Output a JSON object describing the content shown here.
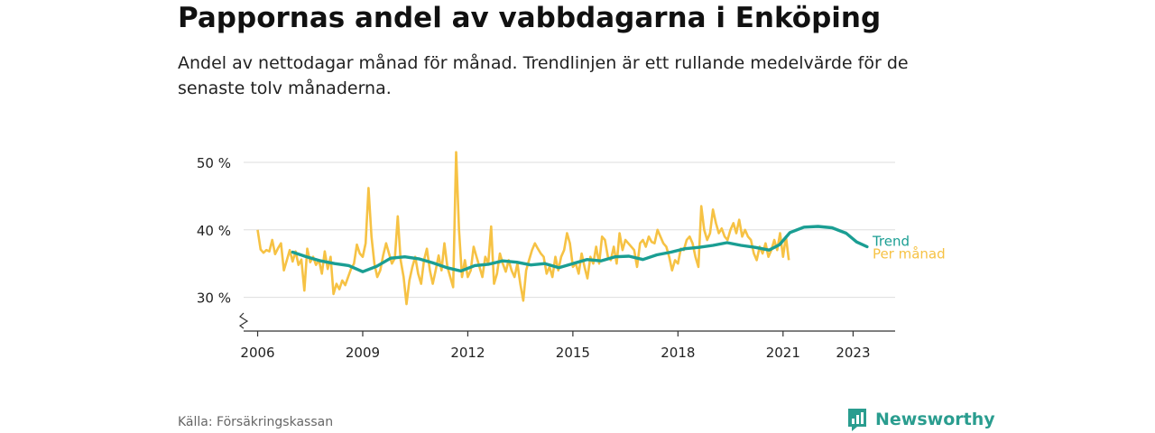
{
  "header": {
    "title": "Pappornas andel av vabbdagarna i Enköping",
    "subtitle": "Andel av nettodagar månad för månad. Trendlinjen är ett rullande medelvärde för de senaste tolv månaderna."
  },
  "footer": {
    "source": "Källa: Försäkringskassan",
    "brand": "Newsworthy"
  },
  "colors": {
    "monthly": "#F6C244",
    "trend": "#1A9E93",
    "grid": "#dddddd",
    "axis": "#333333",
    "brand": "#2a9d8f"
  },
  "chart_data": {
    "type": "line",
    "title": "Pappornas andel av vabbdagarna i Enköping",
    "xlabel": "",
    "ylabel": "",
    "y_unit": "%",
    "ylim": [
      25,
      52
    ],
    "xlim": [
      2005.6,
      2024.2
    ],
    "y_ticks": [
      30,
      40,
      50
    ],
    "y_tick_labels": [
      "30 %",
      "40 %",
      "50 %"
    ],
    "x_ticks": [
      2006,
      2009,
      2012,
      2015,
      2018,
      2021,
      2023
    ],
    "x_tick_labels": [
      "2006",
      "2009",
      "2012",
      "2015",
      "2018",
      "2021",
      "2023"
    ],
    "grid": true,
    "axis_break": true,
    "series": [
      {
        "name": "Per månad",
        "label": "Per månad",
        "x_start": 2006.0,
        "x_step": 0.08333,
        "values": [
          40.0,
          37.1,
          36.6,
          37.0,
          36.8,
          38.5,
          36.4,
          37.3,
          38.0,
          34.0,
          35.5,
          37.0,
          35.3,
          36.8,
          34.8,
          35.6,
          31.0,
          37.2,
          35.2,
          36.0,
          34.8,
          35.5,
          33.5,
          36.8,
          34.2,
          36.0,
          30.5,
          32.0,
          31.2,
          32.5,
          31.8,
          33.0,
          34.2,
          35.0,
          37.8,
          36.5,
          36.0,
          38.0,
          46.2,
          39.0,
          35.0,
          33.0,
          34.0,
          36.2,
          38.0,
          36.5,
          35.0,
          35.8,
          42.0,
          35.5,
          33.0,
          29.0,
          32.5,
          34.5,
          36.0,
          33.5,
          32.0,
          35.5,
          37.2,
          34.0,
          32.0,
          34.0,
          36.2,
          34.0,
          38.0,
          34.5,
          33.0,
          31.5,
          51.5,
          40.0,
          33.0,
          35.5,
          33.0,
          34.0,
          37.5,
          36.0,
          34.5,
          33.0,
          36.0,
          35.0,
          40.5,
          32.0,
          33.5,
          36.5,
          35.0,
          33.8,
          35.5,
          34.0,
          33.0,
          35.0,
          32.0,
          29.5,
          34.0,
          35.5,
          37.0,
          38.0,
          37.2,
          36.5,
          36.0,
          33.5,
          34.5,
          33.0,
          36.0,
          34.0,
          36.0,
          37.0,
          39.5,
          38.0,
          34.5,
          35.0,
          33.5,
          36.5,
          34.5,
          32.8,
          36.0,
          35.0,
          37.5,
          35.0,
          39.0,
          38.5,
          36.0,
          35.5,
          37.5,
          35.0,
          39.5,
          37.0,
          38.5,
          38.0,
          37.5,
          37.0,
          34.5,
          38.0,
          38.5,
          37.5,
          39.0,
          38.2,
          38.0,
          40.0,
          39.0,
          38.0,
          37.5,
          36.0,
          34.0,
          35.5,
          35.0,
          37.2,
          37.0,
          38.5,
          39.0,
          38.0,
          36.0,
          34.5,
          43.5,
          40.0,
          38.5,
          39.5,
          43.0,
          41.0,
          39.5,
          40.2,
          39.0,
          38.5,
          40.0,
          41.0,
          39.5,
          41.5,
          39.0,
          40.0,
          39.0,
          38.5,
          36.5,
          35.5,
          37.5,
          36.5,
          38.0,
          36.0,
          37.0,
          38.5,
          37.0,
          39.5,
          36.0,
          39.0,
          35.5
        ]
      },
      {
        "name": "Trend",
        "label": "Trend",
        "points": [
          [
            2007.0,
            36.7
          ],
          [
            2007.4,
            36.0
          ],
          [
            2007.8,
            35.4
          ],
          [
            2008.2,
            35.0
          ],
          [
            2008.6,
            34.7
          ],
          [
            2009.0,
            33.8
          ],
          [
            2009.4,
            34.6
          ],
          [
            2009.8,
            35.8
          ],
          [
            2010.2,
            36.0
          ],
          [
            2010.6,
            35.7
          ],
          [
            2011.0,
            35.1
          ],
          [
            2011.4,
            34.4
          ],
          [
            2011.8,
            33.9
          ],
          [
            2012.2,
            34.7
          ],
          [
            2012.6,
            34.9
          ],
          [
            2013.0,
            35.4
          ],
          [
            2013.4,
            35.2
          ],
          [
            2013.8,
            34.8
          ],
          [
            2014.2,
            35.0
          ],
          [
            2014.6,
            34.4
          ],
          [
            2015.0,
            35.0
          ],
          [
            2015.4,
            35.6
          ],
          [
            2015.8,
            35.4
          ],
          [
            2016.2,
            36.0
          ],
          [
            2016.6,
            36.1
          ],
          [
            2017.0,
            35.6
          ],
          [
            2017.4,
            36.3
          ],
          [
            2017.8,
            36.7
          ],
          [
            2018.2,
            37.2
          ],
          [
            2018.6,
            37.4
          ],
          [
            2019.0,
            37.7
          ],
          [
            2019.4,
            38.1
          ],
          [
            2019.8,
            37.7
          ],
          [
            2020.2,
            37.4
          ],
          [
            2020.6,
            37.0
          ],
          [
            2020.9,
            37.8
          ],
          [
            2021.2,
            39.6
          ],
          [
            2021.6,
            40.4
          ],
          [
            2022.0,
            40.5
          ],
          [
            2022.4,
            40.3
          ],
          [
            2022.8,
            39.5
          ],
          [
            2023.1,
            38.2
          ],
          [
            2023.4,
            37.5
          ]
        ]
      }
    ]
  }
}
